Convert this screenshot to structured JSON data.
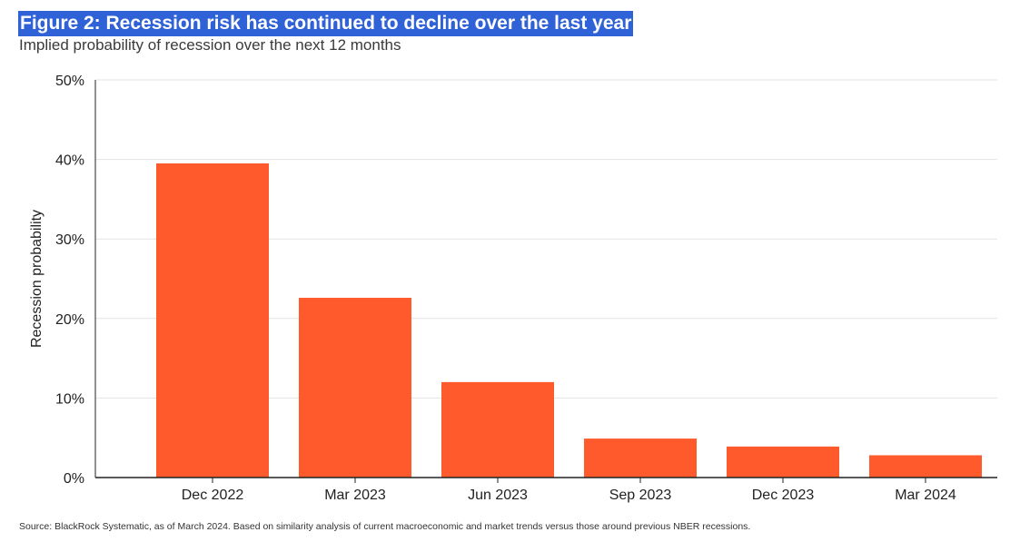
{
  "title": "Figure 2: Recession risk has continued to decline over the last year",
  "subtitle": "Implied probability of recession over the next 12 months",
  "source": "Source: BlackRock Systematic, as of March 2024. Based on similarity analysis of current macroeconomic and market trends versus those around previous NBER recessions.",
  "colors": {
    "title_background": "#2f62d6",
    "bar": "#ff5a2b",
    "grid": "#e3e3e3",
    "axis": "#222222"
  },
  "chart_data": {
    "type": "bar",
    "categories": [
      "Dec 2022",
      "Mar 2023",
      "Jun 2023",
      "Sep 2023",
      "Dec 2023",
      "Mar 2024"
    ],
    "values": [
      39.5,
      22.6,
      12,
      4.9,
      3.9,
      2.8
    ],
    "ylabel": "Recession probability",
    "xlabel": "",
    "ylim": [
      0,
      50
    ],
    "yticks": [
      0,
      10,
      20,
      30,
      40,
      50
    ],
    "ytick_labels": [
      "0%",
      "10%",
      "20%",
      "30%",
      "40%",
      "50%"
    ],
    "grid": true,
    "legend": "none"
  }
}
